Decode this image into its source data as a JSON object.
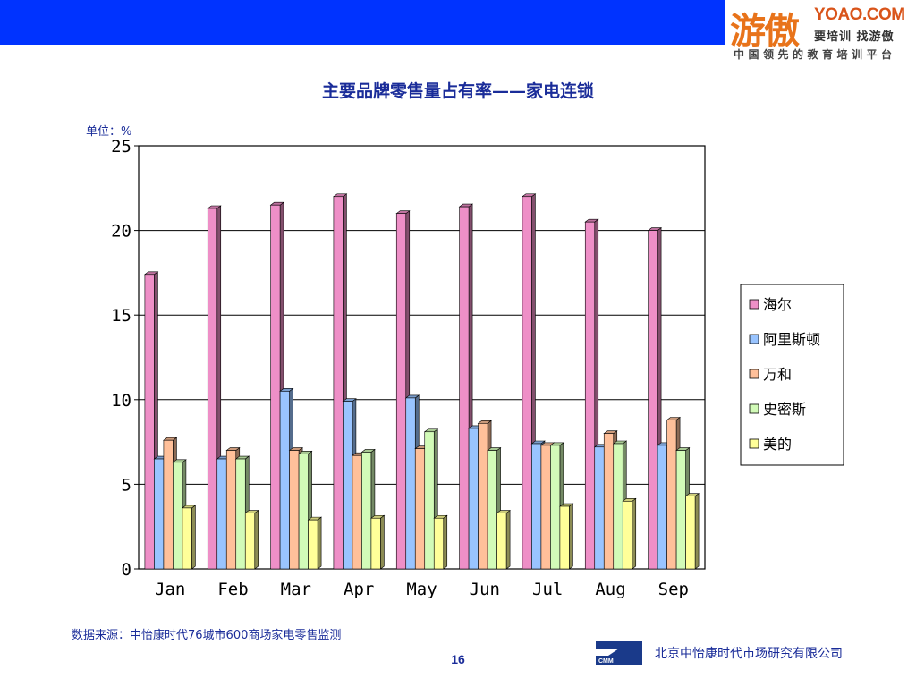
{
  "header": {
    "logo_main": "游傲",
    "logo_domain": "YOAO.COM",
    "logo_tagline_1": "要培训 找游傲",
    "logo_tagline_2": "中国领先的教育培训平台",
    "band_color": "#0033ff",
    "logo_color": "#e8731a"
  },
  "title": "主要品牌零售量占有率——家电连锁",
  "unit_label": "单位：%",
  "chart_data": {
    "type": "bar",
    "title": "主要品牌零售量占有率——家电连锁",
    "xlabel": "",
    "ylabel": "",
    "ylim": [
      0,
      25
    ],
    "yticks": [
      "0",
      "5",
      "10",
      "15",
      "20",
      "25"
    ],
    "grid": true,
    "legend_position": "right",
    "categories": [
      "Jan",
      "Feb",
      "Mar",
      "Apr",
      "May",
      "Jun",
      "Jul",
      "Aug",
      "Sep"
    ],
    "series": [
      {
        "name": "海尔",
        "color": "#ee8fc7",
        "values": [
          17.4,
          21.3,
          21.5,
          22.0,
          21.0,
          21.4,
          22.0,
          20.5,
          20.0
        ]
      },
      {
        "name": "阿里斯顿",
        "color": "#99c4ff",
        "values": [
          6.5,
          6.5,
          10.5,
          9.9,
          10.1,
          8.3,
          7.4,
          7.2,
          7.3
        ]
      },
      {
        "name": "万和",
        "color": "#ffc09a",
        "values": [
          7.6,
          7.0,
          7.0,
          6.7,
          7.1,
          8.6,
          7.3,
          8.0,
          8.8
        ]
      },
      {
        "name": "史密斯",
        "color": "#d2fbb8",
        "values": [
          6.3,
          6.5,
          6.8,
          6.9,
          8.1,
          7.0,
          7.3,
          7.4,
          7.0
        ]
      },
      {
        "name": "美的",
        "color": "#ffff99",
        "values": [
          3.6,
          3.3,
          2.9,
          3.0,
          3.0,
          3.3,
          3.7,
          4.0,
          4.3
        ]
      }
    ]
  },
  "footer": {
    "source": "数据来源：中怡康时代76城市600商场家电零售监测",
    "page_number": "16",
    "cmm_logo_text": "CMM",
    "company": "北京中怡康时代市场研究有限公司"
  }
}
